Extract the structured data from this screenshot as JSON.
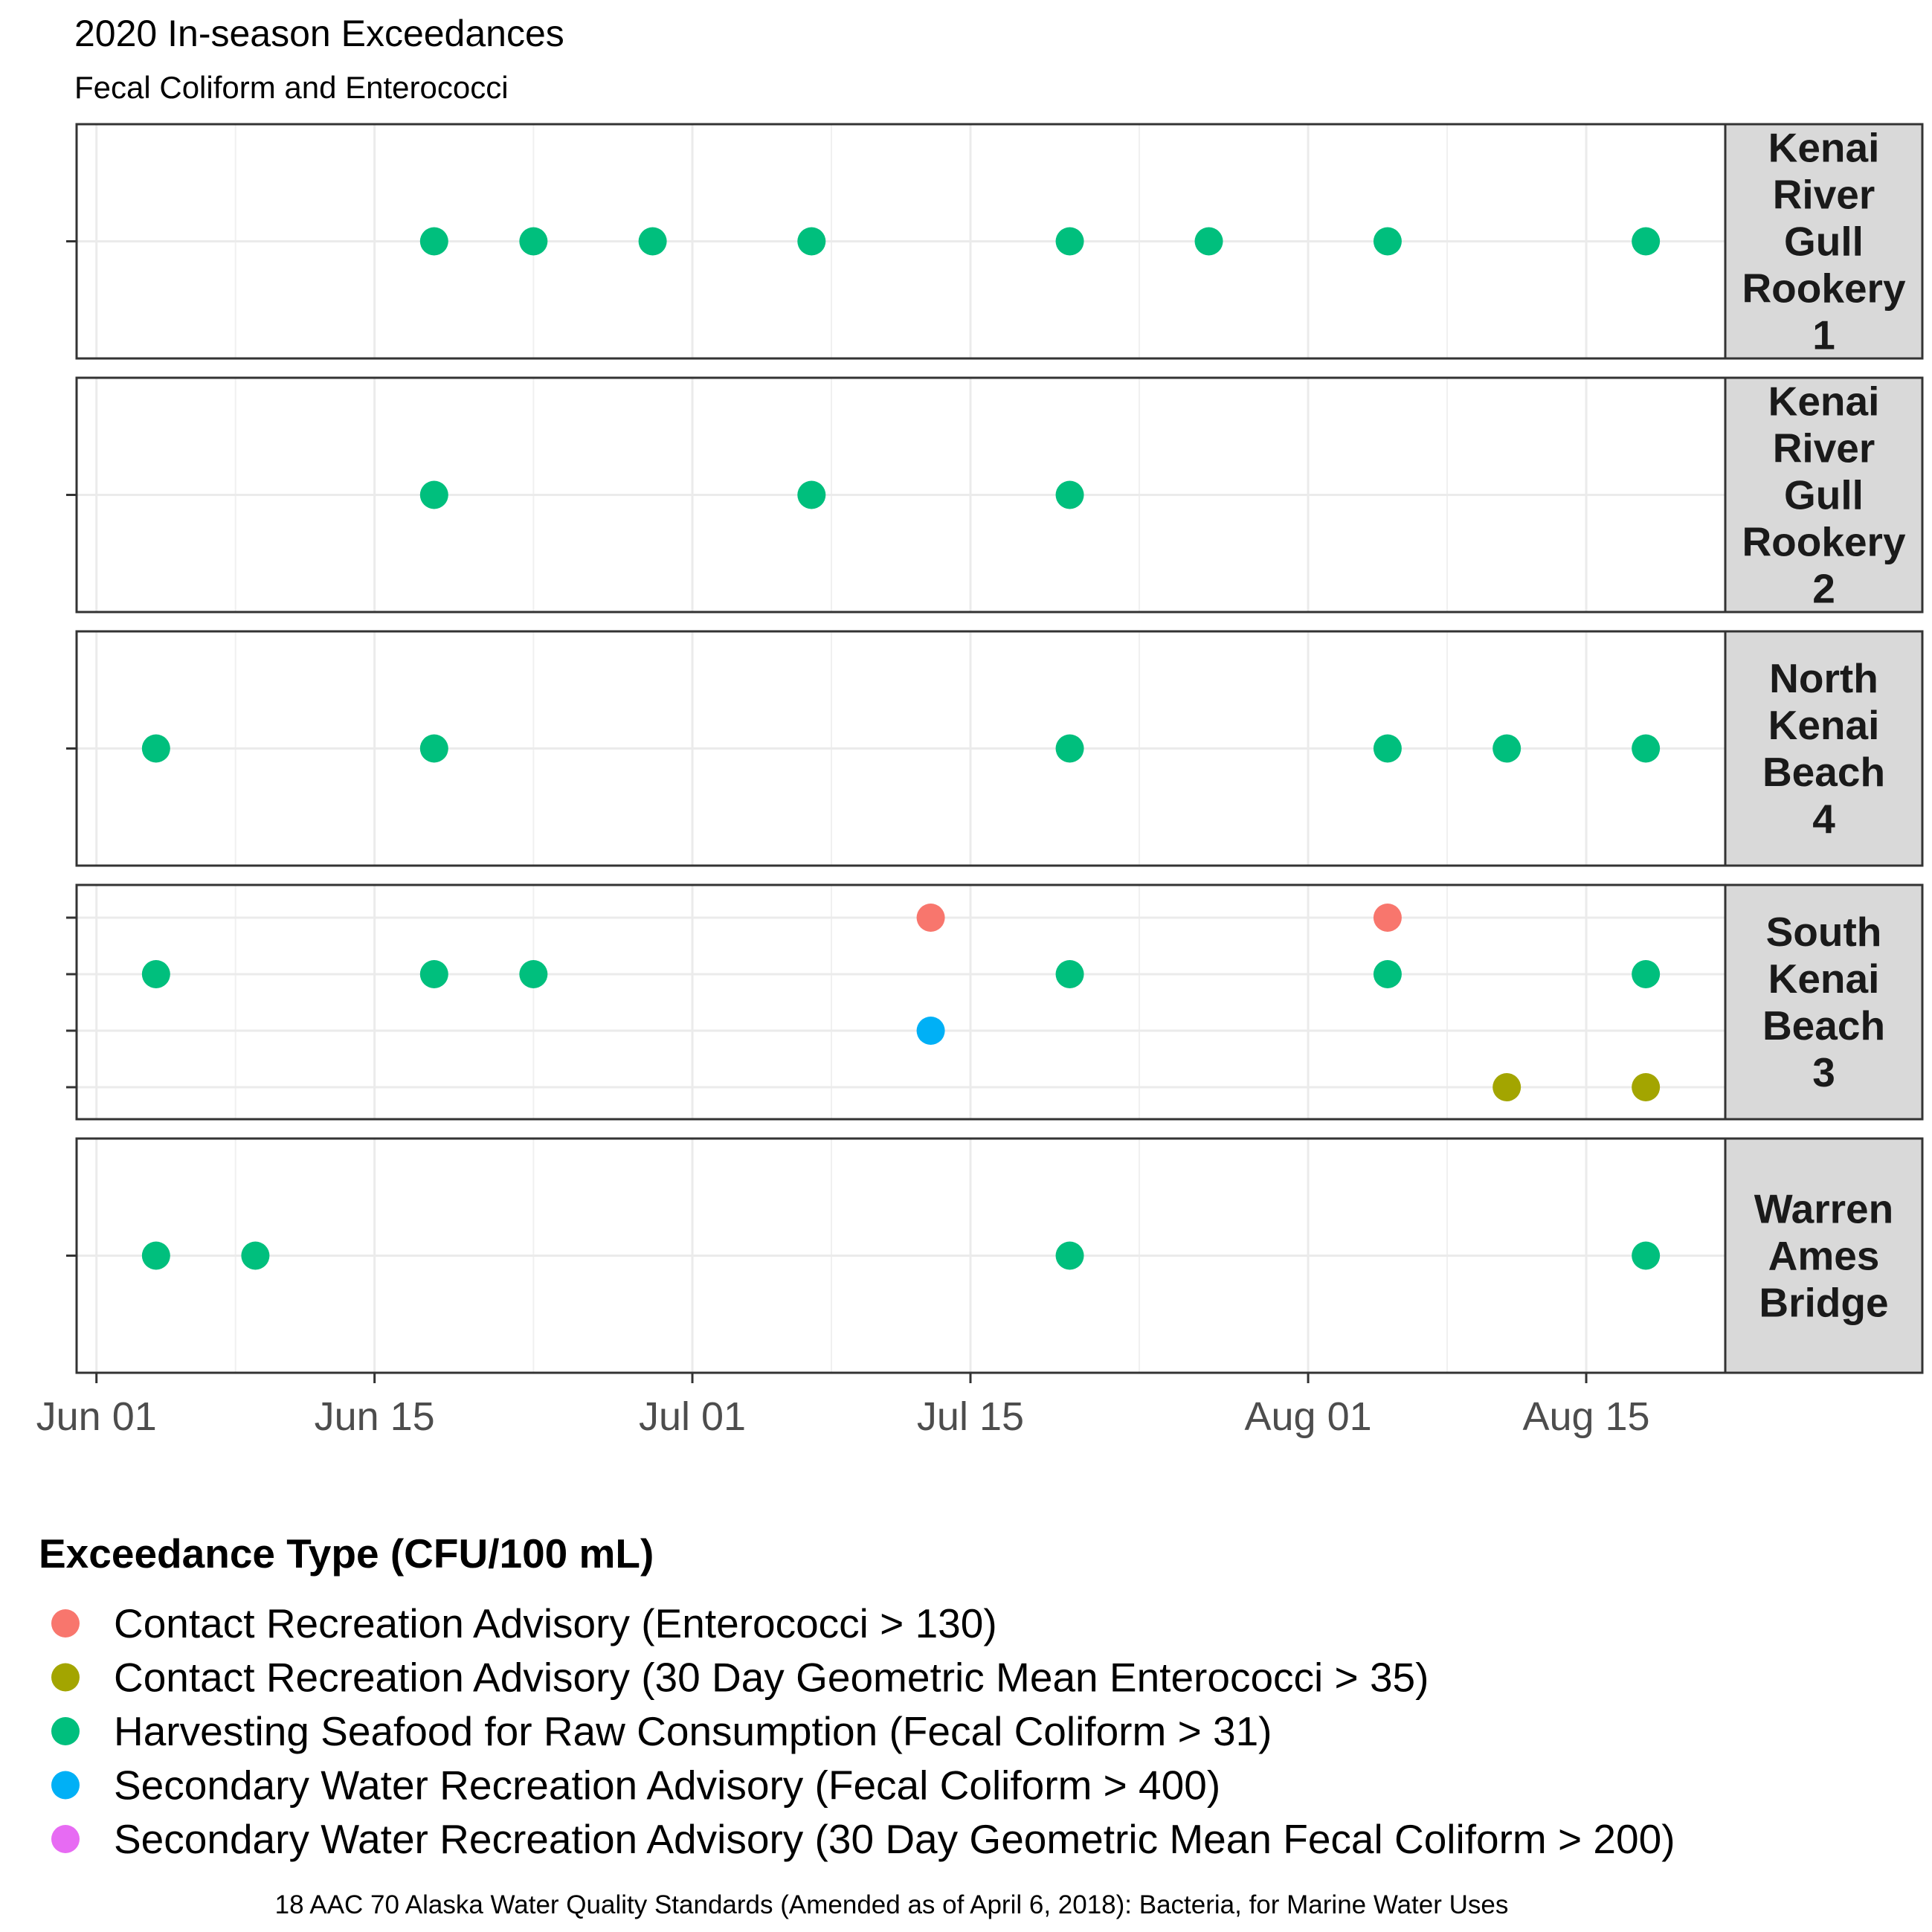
{
  "chart_data": {
    "type": "scatter",
    "title": "2020 In-season Exceedances",
    "subtitle": "Fecal Coliform and Enterococci",
    "x_ticks": [
      "Jun 01",
      "Jun 15",
      "Jul 01",
      "Jul 15",
      "Aug 01",
      "Aug 15"
    ],
    "x_tick_dates": [
      "2020-06-01",
      "2020-06-15",
      "2020-07-01",
      "2020-07-15",
      "2020-08-01",
      "2020-08-15"
    ],
    "xlim": [
      "2020-05-31",
      "2020-08-22"
    ],
    "grid": true,
    "legend_position": "bottom",
    "legend_title": "Exceedance Type (CFU/100 mL)",
    "series": [
      {
        "name": "Contact Recreation Advisory (Enterococci > 130)",
        "color": "#F8766D"
      },
      {
        "name": "Contact Recreation Advisory (30 Day Geometric Mean Enterococci > 35)",
        "color": "#A3A500"
      },
      {
        "name": "Harvesting Seafood for Raw Consumption (Fecal Coliform > 31)",
        "color": "#00BF7D"
      },
      {
        "name": "Secondary Water Recreation Advisory (Fecal Coliform > 400)",
        "color": "#00B0F6"
      },
      {
        "name": "Secondary Water Recreation Advisory (30 Day Geometric Mean Fecal Coliform > 200)",
        "color": "#E76BF3"
      }
    ],
    "panels": [
      {
        "site": "Kenai River Gull Rookery 1",
        "strip_lines": [
          "Kenai",
          "River",
          "Gull",
          "Rookery",
          "1"
        ],
        "rows": [
          2
        ],
        "points": [
          {
            "series": 2,
            "date": "2020-06-18"
          },
          {
            "series": 2,
            "date": "2020-06-23"
          },
          {
            "series": 2,
            "date": "2020-06-29"
          },
          {
            "series": 2,
            "date": "2020-07-07"
          },
          {
            "series": 2,
            "date": "2020-07-20"
          },
          {
            "series": 2,
            "date": "2020-07-27"
          },
          {
            "series": 2,
            "date": "2020-08-05"
          },
          {
            "series": 2,
            "date": "2020-08-18"
          }
        ]
      },
      {
        "site": "Kenai River Gull Rookery 2",
        "strip_lines": [
          "Kenai",
          "River",
          "Gull",
          "Rookery",
          "2"
        ],
        "rows": [
          2
        ],
        "points": [
          {
            "series": 2,
            "date": "2020-06-18"
          },
          {
            "series": 2,
            "date": "2020-07-07"
          },
          {
            "series": 2,
            "date": "2020-07-20"
          }
        ]
      },
      {
        "site": "North Kenai Beach 4",
        "strip_lines": [
          "North",
          "Kenai",
          "Beach",
          "4"
        ],
        "rows": [
          2
        ],
        "points": [
          {
            "series": 2,
            "date": "2020-06-04"
          },
          {
            "series": 2,
            "date": "2020-06-18"
          },
          {
            "series": 2,
            "date": "2020-07-20"
          },
          {
            "series": 2,
            "date": "2020-08-05"
          },
          {
            "series": 2,
            "date": "2020-08-11"
          },
          {
            "series": 2,
            "date": "2020-08-18"
          }
        ]
      },
      {
        "site": "South Kenai Beach 3",
        "strip_lines": [
          "South",
          "Kenai",
          "Beach",
          "3"
        ],
        "rows": [
          0,
          2,
          3,
          1
        ],
        "points": [
          {
            "series": 1,
            "date": "2020-08-11"
          },
          {
            "series": 1,
            "date": "2020-08-18"
          },
          {
            "series": 3,
            "date": "2020-07-13"
          },
          {
            "series": 2,
            "date": "2020-06-04"
          },
          {
            "series": 2,
            "date": "2020-06-18"
          },
          {
            "series": 2,
            "date": "2020-06-23"
          },
          {
            "series": 2,
            "date": "2020-07-20"
          },
          {
            "series": 2,
            "date": "2020-08-05"
          },
          {
            "series": 2,
            "date": "2020-08-18"
          },
          {
            "series": 0,
            "date": "2020-07-13"
          },
          {
            "series": 0,
            "date": "2020-08-05"
          }
        ]
      },
      {
        "site": "Warren Ames Bridge",
        "strip_lines": [
          "Warren",
          "Ames",
          "Bridge"
        ],
        "rows": [
          2
        ],
        "points": [
          {
            "series": 2,
            "date": "2020-06-04"
          },
          {
            "series": 2,
            "date": "2020-06-09"
          },
          {
            "series": 2,
            "date": "2020-07-20"
          },
          {
            "series": 2,
            "date": "2020-08-18"
          }
        ]
      }
    ],
    "caption": "18 AAC 70 Alaska Water Quality Standards (Amended as of April 6, 2018): Bacteria, for Marine Water Uses"
  }
}
